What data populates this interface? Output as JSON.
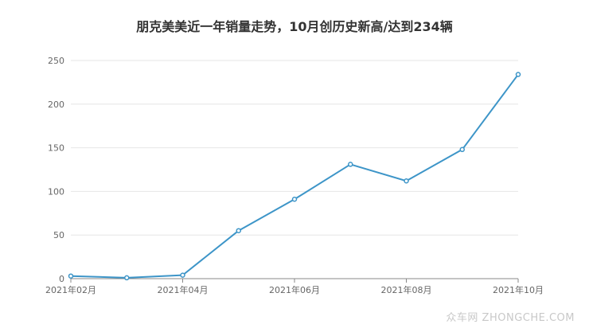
{
  "chart_data": {
    "type": "line",
    "title": "朋克美美近一年销量走势，10月创历史新高/达到234辆",
    "x": [
      "2021年02月",
      "2021年03月",
      "2021年04月",
      "2021年05月",
      "2021年06月",
      "2021年07月",
      "2021年08月",
      "2021年09月",
      "2021年10月"
    ],
    "x_tick_labels": [
      "2021年02月",
      "2021年04月",
      "2021年06月",
      "2021年08月",
      "2021年10月"
    ],
    "series": [
      {
        "values": [
          3,
          1,
          4,
          55,
          91,
          131,
          112,
          148,
          234
        ]
      }
    ],
    "ylim": [
      0,
      250
    ],
    "y_ticks": [
      0,
      50,
      100,
      150,
      200,
      250
    ],
    "grid": true,
    "line_color": "#3d95c8"
  },
  "watermark": "众车网 ZHONGCHE.COM"
}
